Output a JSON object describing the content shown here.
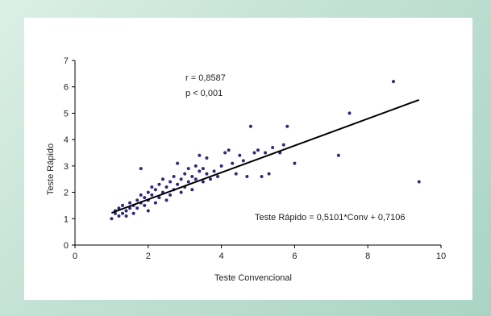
{
  "chart_data": {
    "type": "scatter",
    "title": "",
    "xlabel": "Teste Convencional",
    "ylabel": "Teste Rápido",
    "xlim": [
      0,
      10
    ],
    "ylim": [
      0,
      7
    ],
    "xticks": [
      0,
      2,
      4,
      6,
      8,
      10
    ],
    "yticks": [
      0,
      1,
      2,
      3,
      4,
      5,
      6,
      7
    ],
    "grid": false,
    "annotations": {
      "r": "r = 0,8587",
      "p": "p < 0,001",
      "equation": "Teste Rápido = 0,5101*Conv + 0,7106"
    },
    "regression": {
      "slope": 0.5101,
      "intercept": 0.7106,
      "x_range": [
        1.0,
        9.4
      ]
    },
    "colors": {
      "points": "#2e2a7a",
      "line": "#000000",
      "frame": "#ffffff"
    },
    "series": [
      {
        "points": [
          [
            1.0,
            1.0
          ],
          [
            1.1,
            1.2
          ],
          [
            1.1,
            1.3
          ],
          [
            1.2,
            1.1
          ],
          [
            1.2,
            1.4
          ],
          [
            1.3,
            1.2
          ],
          [
            1.3,
            1.5
          ],
          [
            1.4,
            1.3
          ],
          [
            1.4,
            1.1
          ],
          [
            1.5,
            1.6
          ],
          [
            1.5,
            1.4
          ],
          [
            1.6,
            1.5
          ],
          [
            1.6,
            1.2
          ],
          [
            1.7,
            1.7
          ],
          [
            1.7,
            1.4
          ],
          [
            1.8,
            1.6
          ],
          [
            1.8,
            1.9
          ],
          [
            1.8,
            2.9
          ],
          [
            1.9,
            1.5
          ],
          [
            1.9,
            1.8
          ],
          [
            2.0,
            1.7
          ],
          [
            2.0,
            2.0
          ],
          [
            2.0,
            1.3
          ],
          [
            2.1,
            1.9
          ],
          [
            2.1,
            2.2
          ],
          [
            2.2,
            1.6
          ],
          [
            2.2,
            2.1
          ],
          [
            2.3,
            2.3
          ],
          [
            2.3,
            1.8
          ],
          [
            2.4,
            2.0
          ],
          [
            2.4,
            2.5
          ],
          [
            2.5,
            1.7
          ],
          [
            2.5,
            2.2
          ],
          [
            2.6,
            2.4
          ],
          [
            2.6,
            1.9
          ],
          [
            2.7,
            2.6
          ],
          [
            2.7,
            2.1
          ],
          [
            2.8,
            2.3
          ],
          [
            2.8,
            3.1
          ],
          [
            2.9,
            2.5
          ],
          [
            2.9,
            2.0
          ],
          [
            3.0,
            2.7
          ],
          [
            3.0,
            2.2
          ],
          [
            3.1,
            2.9
          ],
          [
            3.1,
            2.4
          ],
          [
            3.2,
            2.6
          ],
          [
            3.2,
            2.1
          ],
          [
            3.3,
            3.0
          ],
          [
            3.3,
            2.5
          ],
          [
            3.4,
            2.8
          ],
          [
            3.4,
            3.4
          ],
          [
            3.5,
            2.4
          ],
          [
            3.5,
            2.9
          ],
          [
            3.6,
            3.3
          ],
          [
            3.6,
            2.7
          ],
          [
            3.7,
            2.5
          ],
          [
            3.8,
            2.8
          ],
          [
            3.9,
            2.6
          ],
          [
            4.0,
            3.0
          ],
          [
            4.1,
            3.5
          ],
          [
            4.2,
            3.6
          ],
          [
            4.3,
            3.1
          ],
          [
            4.4,
            2.7
          ],
          [
            4.5,
            3.4
          ],
          [
            4.6,
            3.2
          ],
          [
            4.7,
            2.6
          ],
          [
            4.8,
            4.5
          ],
          [
            4.9,
            3.5
          ],
          [
            5.0,
            3.6
          ],
          [
            5.1,
            2.6
          ],
          [
            5.2,
            3.5
          ],
          [
            5.3,
            2.7
          ],
          [
            5.4,
            3.7
          ],
          [
            5.6,
            3.5
          ],
          [
            5.7,
            3.8
          ],
          [
            5.8,
            4.5
          ],
          [
            6.0,
            3.1
          ],
          [
            7.2,
            3.4
          ],
          [
            7.5,
            5.0
          ],
          [
            8.7,
            6.2
          ],
          [
            9.4,
            2.4
          ]
        ]
      }
    ]
  }
}
